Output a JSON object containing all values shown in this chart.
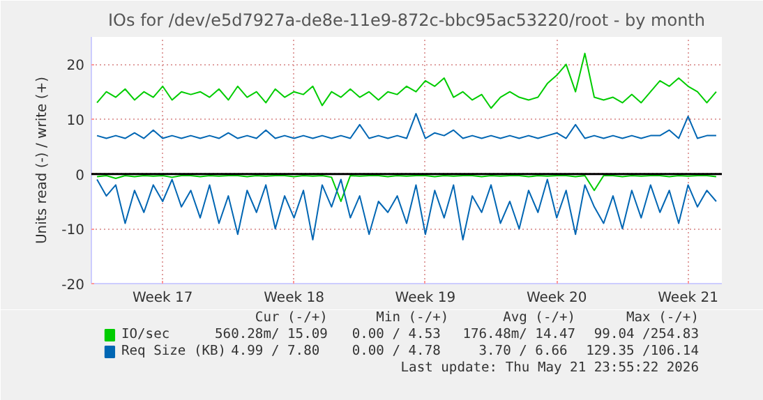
{
  "chart_data": {
    "type": "line",
    "title": "IOs for /dev/e5d7927a-de8e-11e9-872c-bbc95ac53220/root - by month",
    "ylabel": "Units read (-) / write (+)",
    "series": [
      {
        "name": "IO/sec",
        "color": "#00cc00",
        "values": [
          13,
          15,
          14,
          15.5,
          13.5,
          15,
          14,
          16,
          13.5,
          15,
          14.5,
          15,
          14,
          15.5,
          13.5,
          16,
          14,
          15,
          13,
          15.5,
          14,
          15,
          14.5,
          16,
          12.5,
          15,
          14,
          15.5,
          14,
          15,
          13.5,
          15,
          14.5,
          16,
          15,
          17,
          16,
          17.5,
          14,
          15,
          13.5,
          14.5,
          12,
          14,
          15,
          14,
          13.5,
          14,
          16.5,
          18,
          20,
          15,
          22,
          14,
          13.5,
          14,
          13,
          14.5,
          13,
          15,
          17,
          16,
          17.5,
          16,
          15,
          13,
          15
        ]
      },
      {
        "color": "#00cc00",
        "values": [
          -0.5,
          -0.3,
          -0.8,
          -0.3,
          -0.5,
          -0.3,
          -0.4,
          -0.3,
          -0.6,
          -0.3,
          -0.3,
          -0.5,
          -0.3,
          -0.4,
          -0.3,
          -0.3,
          -0.5,
          -0.3,
          -0.4,
          -0.3,
          -0.3,
          -0.5,
          -0.3,
          -0.4,
          -0.3,
          -0.6,
          -5,
          -0.3,
          -0.4,
          -0.3,
          -0.3,
          -0.5,
          -0.3,
          -0.4,
          -0.3,
          -0.3,
          -0.5,
          -0.3,
          -0.4,
          -0.3,
          -0.3,
          -0.5,
          -0.3,
          -0.4,
          -0.3,
          -0.3,
          -0.5,
          -0.3,
          -0.4,
          -0.3,
          -0.3,
          -0.5,
          -0.3,
          -3,
          -0.3,
          -0.3,
          -0.5,
          -0.3,
          -0.4,
          -0.3,
          -0.3,
          -0.5,
          -0.3,
          -0.4,
          -0.3,
          -0.3,
          -0.5
        ]
      },
      {
        "name": "Req Size (KB)",
        "color": "#0066b3",
        "values": [
          7,
          6.5,
          7,
          6.5,
          7.5,
          6.5,
          8,
          6.5,
          7,
          6.5,
          7,
          6.5,
          7,
          6.5,
          7.5,
          6.5,
          7,
          6.5,
          8,
          6.5,
          7,
          6.5,
          7,
          6.5,
          7,
          6.5,
          7,
          6.5,
          9,
          6.5,
          7,
          6.5,
          7,
          6.5,
          11,
          6.5,
          7.5,
          7,
          8,
          6.5,
          7,
          6.5,
          7,
          6.5,
          7,
          6.5,
          7,
          6.5,
          7,
          7.5,
          6.5,
          9,
          6.5,
          7,
          6.5,
          7,
          6.5,
          7,
          6.5,
          7,
          7,
          8,
          6.5,
          10.5,
          6.5,
          7,
          7
        ]
      },
      {
        "color": "#0066b3",
        "values": [
          -1,
          -4,
          -2,
          -9,
          -3,
          -7,
          -2,
          -5,
          -1,
          -6,
          -3,
          -8,
          -2,
          -9,
          -4,
          -11,
          -3,
          -7,
          -2,
          -10,
          -4,
          -8,
          -3,
          -12,
          -2,
          -6,
          -1,
          -8,
          -4,
          -11,
          -5,
          -7,
          -4,
          -9,
          -2,
          -11,
          -3,
          -8,
          -2,
          -12,
          -4,
          -7,
          -2,
          -9,
          -5,
          -10,
          -3,
          -7,
          -1,
          -8,
          -3,
          -11,
          -2,
          -6,
          -9,
          -4,
          -10,
          -3,
          -8,
          -2,
          -7,
          -3,
          -9,
          -2,
          -6,
          -3,
          -5
        ]
      }
    ],
    "categories": [
      null,
      null,
      null,
      null,
      null,
      null,
      null,
      "Week 17",
      null,
      null,
      null,
      null,
      null,
      null,
      null,
      null,
      null,
      null,
      null,
      null,
      null,
      "Week 18",
      null,
      null,
      null,
      null,
      null,
      null,
      null,
      null,
      null,
      null,
      null,
      null,
      null,
      "Week 19",
      null,
      null,
      null,
      null,
      null,
      null,
      null,
      null,
      null,
      null,
      null,
      null,
      null,
      "Week 20",
      null,
      null,
      null,
      null,
      null,
      null,
      null,
      null,
      null,
      null,
      null,
      null,
      null,
      "Week 21",
      null,
      null,
      null
    ],
    "ylim": [
      -20,
      25
    ],
    "yticks": [
      -20,
      -10,
      0,
      10,
      20
    ],
    "ref_lines": [
      {
        "axis": "y",
        "value": 0,
        "color": "#000000"
      }
    ],
    "grid": true,
    "legend": "bottom",
    "annotations": [
      "Cur (-/+)",
      "Min (-/+)",
      "Avg (-/+)",
      "Max (-/+)",
      "560.28m/ 15.09",
      "0.00 /  4.53",
      "176.48m/ 14.47",
      "99.04 /254.83",
      "4.99 /  7.80",
      "0.00 /  4.78",
      "3.70 /  6.66",
      "129.35 /106.14",
      "Last update: Thu May 21 23:55:22 2026"
    ]
  }
}
